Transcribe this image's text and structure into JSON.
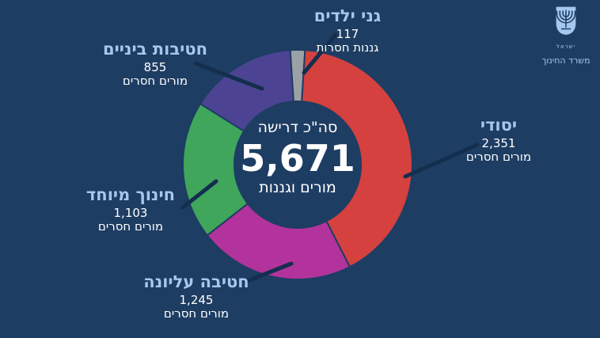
{
  "background_color": "#1e3d63",
  "connector_color": "#142e4d",
  "text_colors": {
    "heading": "#a5c8ee",
    "body": "#ffffff"
  },
  "logo": {
    "country": "ישראל",
    "ministry": "משרד החינוך"
  },
  "chart_data": {
    "type": "pie",
    "style": "donut",
    "title": "סה\"כ דרישה 5,671 מורים וגננות",
    "center_label_top": "סה\"כ דרישה",
    "center_total": "5,671",
    "center_label_bottom": "מורים וגננות",
    "total_value": 5671,
    "legend_position": "around-chart",
    "segments": [
      {
        "key": "kindergarten",
        "label": "גני ילדים",
        "value": 117,
        "value_text": "117",
        "unit": "גננות חסרות",
        "color": "#9ba1a5"
      },
      {
        "key": "elementary",
        "label": "יסודי",
        "value": 2351,
        "value_text": "2,351",
        "unit": "מורים חסרים",
        "color": "#d4413e"
      },
      {
        "key": "high-school",
        "label": "חטיבה עליונה",
        "value": 1245,
        "value_text": "1,245",
        "unit": "מורים חסרים",
        "color": "#b3339c"
      },
      {
        "key": "special-education",
        "label": "חינוך מיוחד",
        "value": 1103,
        "value_text": "1,103",
        "unit": "מורים חסרים",
        "color": "#3fa65c"
      },
      {
        "key": "middle-school",
        "label": "חטיבות ביניים",
        "value": 855,
        "value_text": "855",
        "unit": "מורים חסרים",
        "color": "#4c4493"
      }
    ]
  }
}
